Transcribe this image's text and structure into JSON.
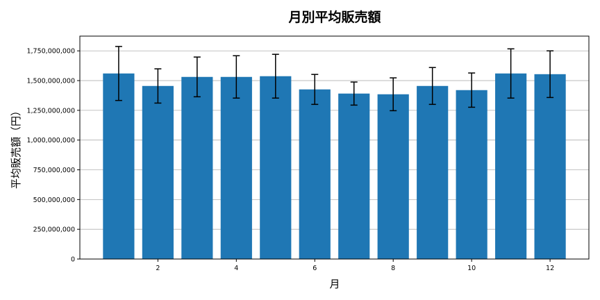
{
  "chart_data": {
    "type": "bar",
    "title": "月別平均販売額",
    "xlabel": "月",
    "ylabel": "平均販売額（円）",
    "categories": [
      1,
      2,
      3,
      4,
      5,
      6,
      7,
      8,
      9,
      10,
      11,
      12
    ],
    "values": [
      1560000000,
      1455000000,
      1531000000,
      1531000000,
      1537000000,
      1426000000,
      1391000000,
      1385000000,
      1455000000,
      1420000000,
      1560000000,
      1554000000
    ],
    "errors": [
      227000000,
      144000000,
      167000000,
      178000000,
      184000000,
      126000000,
      97000000,
      138000000,
      155000000,
      144000000,
      207000000,
      196000000
    ],
    "xticks": [
      2,
      4,
      6,
      8,
      10,
      12
    ],
    "yticks": [
      0,
      250000000,
      500000000,
      750000000,
      1000000000,
      1250000000,
      1500000000,
      1750000000
    ],
    "ytick_labels": [
      "0",
      "250,000,000",
      "500,000,000",
      "750,000,000",
      "1,000,000,000",
      "1,250,000,000",
      "1,500,000,000",
      "1,750,000,000"
    ],
    "xlim": [
      0.01,
      12.99
    ],
    "ylim": [
      0,
      1874000000
    ],
    "grid": "y",
    "bar_color": "#1f77b4",
    "error_color": "#000000"
  }
}
